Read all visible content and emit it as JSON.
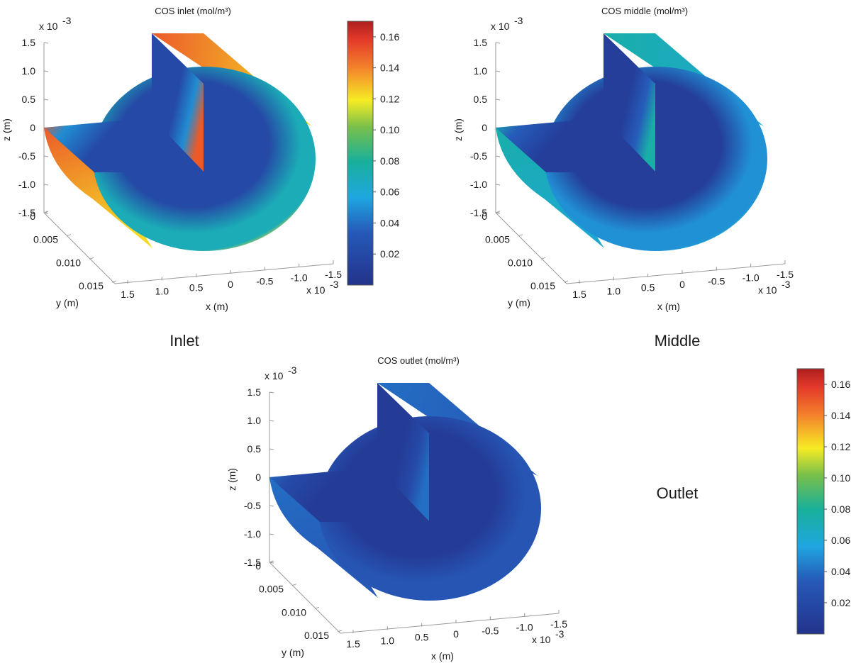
{
  "chart_data": [
    {
      "type": "heatmap",
      "subtype": "3d-surface-cutaway-cylinder",
      "title": "COS inlet (mol/m³)",
      "section_label": "Inlet",
      "xlabel": "x (m)",
      "ylabel": "y (m)",
      "zlabel": "z (m)",
      "x_ticks": [
        "1.5",
        "1.0",
        "0.5",
        "0",
        "-0.5",
        "-1.0",
        "-1.5"
      ],
      "y_ticks": [
        "0",
        "0.005",
        "0.010",
        "0.015"
      ],
      "z_ticks": [
        "1.5",
        "1.0",
        "0.5",
        "0",
        "-0.5",
        "-1.0",
        "-1.5"
      ],
      "x_scale_label": "x 10",
      "z_scale_label": "x 10",
      "scale_exponent": "-3",
      "xlim": [
        -0.0015,
        0.0015
      ],
      "ylim": [
        0,
        0.015
      ],
      "zlim": [
        -0.0015,
        0.0015
      ],
      "colorbar": {
        "min": 0,
        "max": 0.17,
        "ticks": [
          "0.16",
          "0.14",
          "0.12",
          "0.10",
          "0.08",
          "0.06",
          "0.04",
          "0.02"
        ]
      },
      "shell_concentration": 0.15,
      "core_concentration": 0.02,
      "ring_concentration": 0.07
    },
    {
      "type": "heatmap",
      "subtype": "3d-surface-cutaway-cylinder",
      "title": "COS middle (mol/m³)",
      "section_label": "Middle",
      "xlabel": "x (m)",
      "ylabel": "y (m)",
      "zlabel": "z (m)",
      "x_ticks": [
        "1.5",
        "1.0",
        "0.5",
        "0",
        "-0.5",
        "-1.0",
        "-1.5"
      ],
      "y_ticks": [
        "0",
        "0.005",
        "0.010",
        "0.015"
      ],
      "z_ticks": [
        "1.5",
        "1.0",
        "0.5",
        "0",
        "-0.5",
        "-1.0",
        "-1.5"
      ],
      "x_scale_label": "x 10",
      "z_scale_label": "x 10",
      "scale_exponent": "-3",
      "xlim": [
        -0.0015,
        0.0015
      ],
      "ylim": [
        0,
        0.015
      ],
      "zlim": [
        -0.0015,
        0.0015
      ],
      "colorbar": {
        "min": 0,
        "max": 0.17,
        "ticks": [
          "0.16",
          "0.14",
          "0.12",
          "0.10",
          "0.08",
          "0.06",
          "0.04",
          "0.02"
        ]
      },
      "shell_concentration": 0.075,
      "core_concentration": 0.01,
      "ring_concentration": 0.05
    },
    {
      "type": "heatmap",
      "subtype": "3d-surface-cutaway-cylinder",
      "title": "COS outlet (mol/m³)",
      "section_label": "Outlet",
      "xlabel": "x (m)",
      "ylabel": "y (m)",
      "zlabel": "z (m)",
      "x_ticks": [
        "1.5",
        "1.0",
        "0.5",
        "0",
        "-0.5",
        "-1.0",
        "-1.5"
      ],
      "y_ticks": [
        "0",
        "0.005",
        "0.010",
        "0.015"
      ],
      "z_ticks": [
        "1.5",
        "1.0",
        "0.5",
        "0",
        "-0.5",
        "-1.0",
        "-1.5"
      ],
      "x_scale_label": "x 10",
      "z_scale_label": "x 10",
      "scale_exponent": "-3",
      "xlim": [
        -0.0015,
        0.0015
      ],
      "ylim": [
        0,
        0.015
      ],
      "zlim": [
        -0.0015,
        0.0015
      ],
      "colorbar": {
        "min": 0,
        "max": 0.17,
        "ticks": [
          "0.16",
          "0.14",
          "0.12",
          "0.10",
          "0.08",
          "0.06",
          "0.04",
          "0.02"
        ]
      },
      "shell_concentration": 0.04,
      "core_concentration": 0.008,
      "ring_concentration": 0.03
    }
  ]
}
